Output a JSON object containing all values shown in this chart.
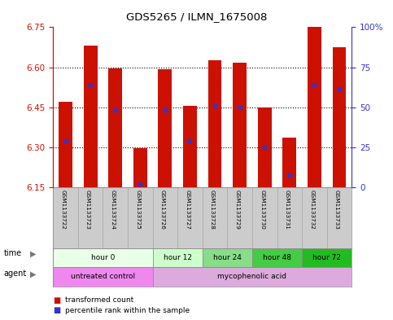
{
  "title": "GDS5265 / ILMN_1675008",
  "samples": [
    "GSM1133722",
    "GSM1133723",
    "GSM1133724",
    "GSM1133725",
    "GSM1133726",
    "GSM1133727",
    "GSM1133728",
    "GSM1133729",
    "GSM1133730",
    "GSM1133731",
    "GSM1133732",
    "GSM1133733"
  ],
  "bar_tops": [
    6.47,
    6.68,
    6.595,
    6.295,
    6.593,
    6.455,
    6.625,
    6.618,
    6.448,
    6.335,
    6.75,
    6.675
  ],
  "bar_bottoms": [
    6.15,
    6.15,
    6.15,
    6.15,
    6.15,
    6.15,
    6.15,
    6.15,
    6.15,
    6.15,
    6.15,
    6.15
  ],
  "percentile_values": [
    6.325,
    6.535,
    6.44,
    6.162,
    6.44,
    6.325,
    6.455,
    6.45,
    6.298,
    6.195,
    6.535,
    6.518
  ],
  "ylim_left": [
    6.15,
    6.75
  ],
  "yticks_left": [
    6.15,
    6.3,
    6.45,
    6.6,
    6.75
  ],
  "yticks_right": [
    0,
    25,
    50,
    75,
    100
  ],
  "bar_color": "#cc1100",
  "percentile_color": "#3333cc",
  "time_groups": [
    {
      "label": "hour 0",
      "start": 0,
      "end": 4,
      "color": "#e8ffe8"
    },
    {
      "label": "hour 12",
      "start": 4,
      "end": 6,
      "color": "#ccffcc"
    },
    {
      "label": "hour 24",
      "start": 6,
      "end": 8,
      "color": "#88dd88"
    },
    {
      "label": "hour 48",
      "start": 8,
      "end": 10,
      "color": "#44cc44"
    },
    {
      "label": "hour 72",
      "start": 10,
      "end": 12,
      "color": "#22bb22"
    }
  ],
  "agent_groups": [
    {
      "label": "untreated control",
      "start": 0,
      "end": 4,
      "color": "#ee88ee"
    },
    {
      "label": "mycophenolic acid",
      "start": 4,
      "end": 12,
      "color": "#ddaadd"
    }
  ],
  "legend_items": [
    {
      "label": "transformed count",
      "color": "#cc1100"
    },
    {
      "label": "percentile rank within the sample",
      "color": "#3333cc"
    }
  ],
  "ylabel_left_color": "#cc1100",
  "ylabel_right_color": "#3333cc",
  "background_color": "#ffffff",
  "plot_bg": "#ffffff",
  "grid_color": "black",
  "grid_lines": [
    6.3,
    6.45,
    6.6
  ]
}
